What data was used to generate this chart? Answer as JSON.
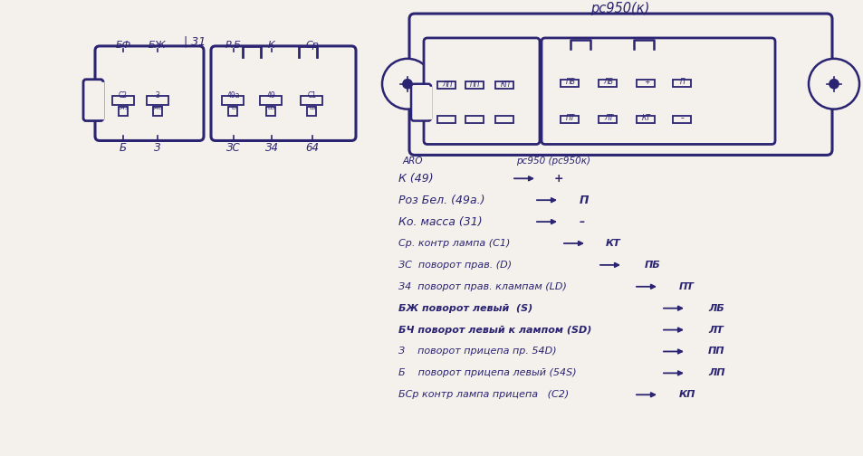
{
  "bg_color": "#f4f0eb",
  "ink_color": "#2a2472",
  "title": "рс950(к)",
  "aro_label": "ARO",
  "pc950_label": "рс950 (рс950к)",
  "mapping_lines": [
    {
      "aro": "К (49)",
      "arrow": true,
      "pc": "+",
      "bold_aro": false
    },
    {
      "aro": "Роз Бел. (49а.) ",
      "arrow": true,
      "pc": "П",
      "bold_aro": false
    },
    {
      "aro": "Ко. масса (31) ",
      "arrow": true,
      "pc": "–",
      "bold_aro": false
    },
    {
      "aro": "Ср. контр лампа (С1)",
      "arrow": true,
      "pc": "КТ",
      "bold_aro": false
    },
    {
      "aro": "ЗС  поворот прав. (D)",
      "arrow": true,
      "pc": "ПБ",
      "bold_aro": false
    },
    {
      "aro": "З4  поворот прав. клампам (LD)",
      "arrow": true,
      "pc": "ПТ",
      "bold_aro": false
    },
    {
      "aro": "БЖ поворот левый  (S)",
      "arrow": true,
      "pc": "ЛБ",
      "bold_aro": true
    },
    {
      "aro": "БЧ поворот левый к лампом (SD)",
      "arrow": true,
      "pc": "ЛТ",
      "bold_aro": true
    },
    {
      "aro": "З    поворот прицепа пр. 54D)",
      "arrow": true,
      "pc": "ПП",
      "bold_aro": false
    },
    {
      "aro": "Б    поворот прицепа левый (54S)",
      "arrow": true,
      "pc": "ЛП",
      "bold_aro": false
    },
    {
      "aro": "БСр контр лампа прицепа   (С2)",
      "arrow": true,
      "pc": "КП",
      "bold_aro": false
    }
  ]
}
